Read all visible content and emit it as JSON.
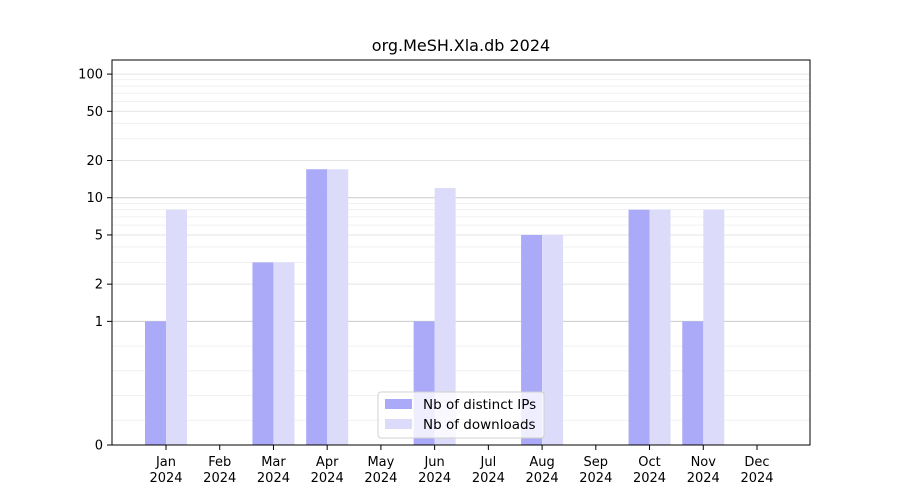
{
  "chart_data": {
    "type": "bar",
    "title": "org.MeSH.Xla.db 2024",
    "xlabel": "",
    "ylabel": "",
    "yscale": "symlog",
    "ylim": [
      0,
      130
    ],
    "yticks": [
      0,
      1,
      2,
      5,
      10,
      20,
      50,
      100
    ],
    "ytick_labels": [
      "0",
      "1",
      "2",
      "5",
      "10",
      "20",
      "50",
      "100"
    ],
    "categories": [
      "Jan 2024",
      "Feb 2024",
      "Mar 2024",
      "Apr 2024",
      "May 2024",
      "Jun 2024",
      "Jul 2024",
      "Aug 2024",
      "Sep 2024",
      "Oct 2024",
      "Nov 2024",
      "Dec 2024"
    ],
    "category_lines": [
      [
        "Jan",
        "2024"
      ],
      [
        "Feb",
        "2024"
      ],
      [
        "Mar",
        "2024"
      ],
      [
        "Apr",
        "2024"
      ],
      [
        "May",
        "2024"
      ],
      [
        "Jun",
        "2024"
      ],
      [
        "Jul",
        "2024"
      ],
      [
        "Aug",
        "2024"
      ],
      [
        "Sep",
        "2024"
      ],
      [
        "Oct",
        "2024"
      ],
      [
        "Nov",
        "2024"
      ],
      [
        "Dec",
        "2024"
      ]
    ],
    "series": [
      {
        "name": "Nb of distinct IPs",
        "color": "#aaaaf8",
        "values": [
          1,
          0,
          3,
          17,
          0,
          1,
          0,
          5,
          0,
          8,
          1,
          0
        ]
      },
      {
        "name": "Nb of downloads",
        "color": "#dcdcfa",
        "values": [
          8,
          0,
          3,
          17,
          0,
          12,
          0,
          5,
          0,
          8,
          8,
          0
        ]
      }
    ],
    "grid": true,
    "legend_position": "bottom-center"
  }
}
